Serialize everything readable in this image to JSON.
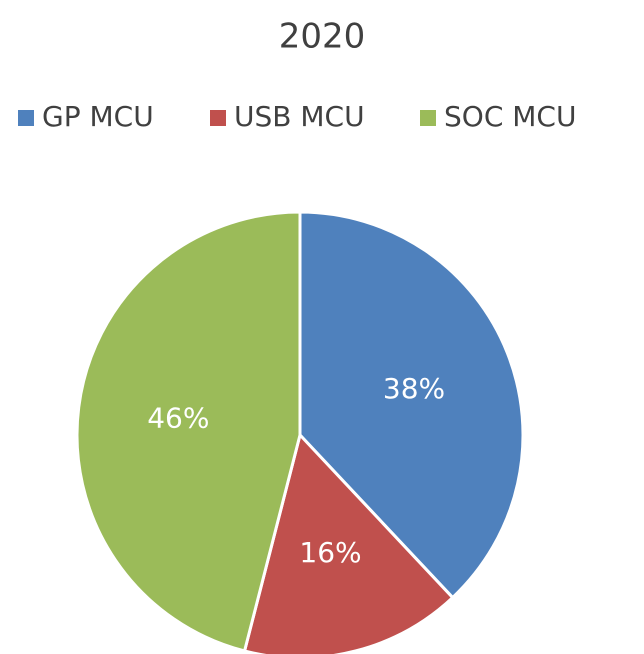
{
  "chart_data": {
    "type": "pie",
    "title": "2020",
    "categories": [
      "GP MCU",
      "USB MCU",
      "SOC MCU"
    ],
    "values": [
      38,
      16,
      46
    ],
    "value_labels": [
      "38%",
      "16%",
      "46%"
    ],
    "colors": [
      "#4f81bd",
      "#c0504d",
      "#9bbb59"
    ],
    "legend": "top"
  }
}
